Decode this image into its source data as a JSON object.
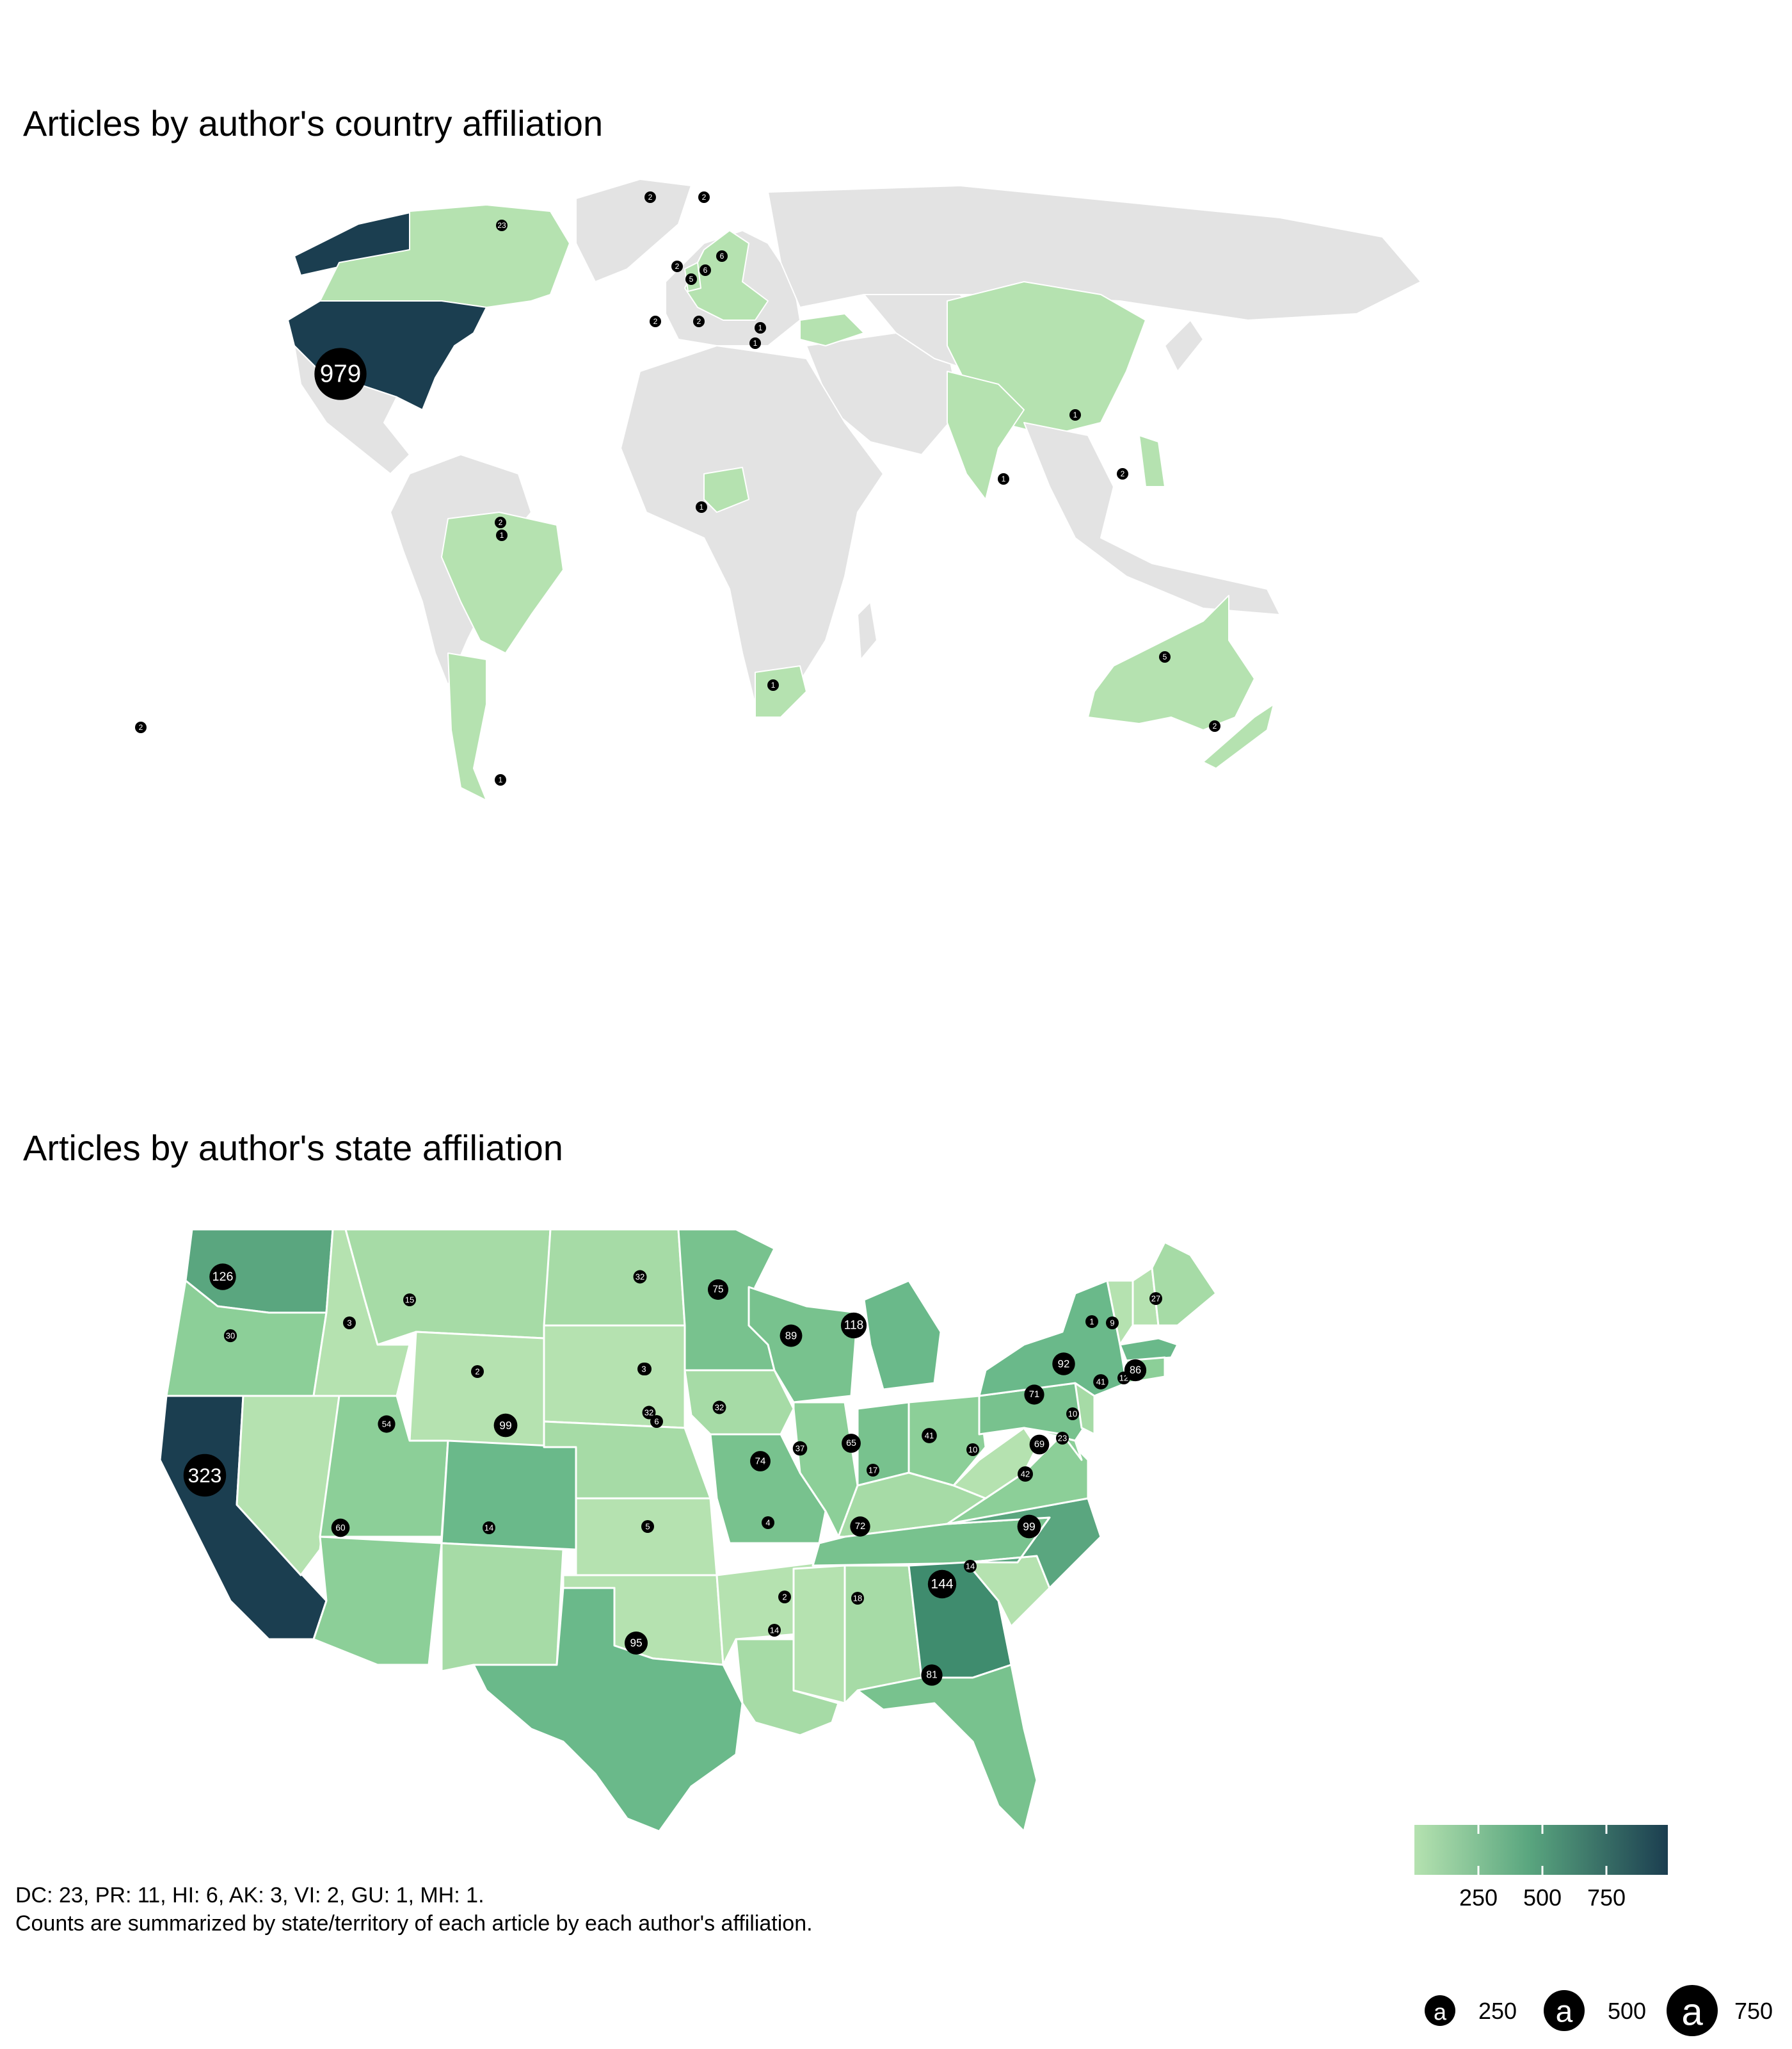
{
  "titles": {
    "world": "Articles by author's country affiliation",
    "states": "Articles by author's state affiliation"
  },
  "caption": {
    "line1": "DC: 23, PR: 11, HI: 6, AK: 3, VI: 2, GU: 1, MH: 1.",
    "line2": "Counts are summarized by state/territory of each article by each author's affiliation."
  },
  "colors": {
    "scale_low": "#b5e2b0",
    "scale_mid": "#5aa67f",
    "scale_high": "#1b3e50",
    "no_data": "#e3e3e3",
    "border": "#ffffff",
    "bubble": "#000000"
  },
  "legend": {
    "color_ticks": [
      "250",
      "500",
      "750"
    ],
    "size_glyph": "a",
    "size_labels": [
      "250",
      "500",
      "750"
    ]
  },
  "world_bubbles": [
    "979",
    "23",
    "2",
    "2",
    "2",
    "5",
    "6",
    "6",
    "2",
    "2",
    "1",
    "1",
    "1",
    "1",
    "1",
    "2",
    "2",
    "1",
    "5",
    "1",
    "2",
    "2",
    "1"
  ],
  "state_bubbles": [
    "126",
    "30",
    "3",
    "15",
    "2",
    "3",
    "60",
    "323",
    "54",
    "99",
    "14",
    "32",
    "3",
    "32",
    "6",
    "5",
    "95",
    "75",
    "32",
    "89",
    "118",
    "37",
    "74",
    "65",
    "17",
    "4",
    "2",
    "14",
    "18",
    "72",
    "144",
    "81",
    "41",
    "10",
    "42",
    "69",
    "23",
    "10",
    "71",
    "92",
    "99",
    "14",
    "41",
    "12",
    "86",
    "1",
    "9",
    "27"
  ]
}
